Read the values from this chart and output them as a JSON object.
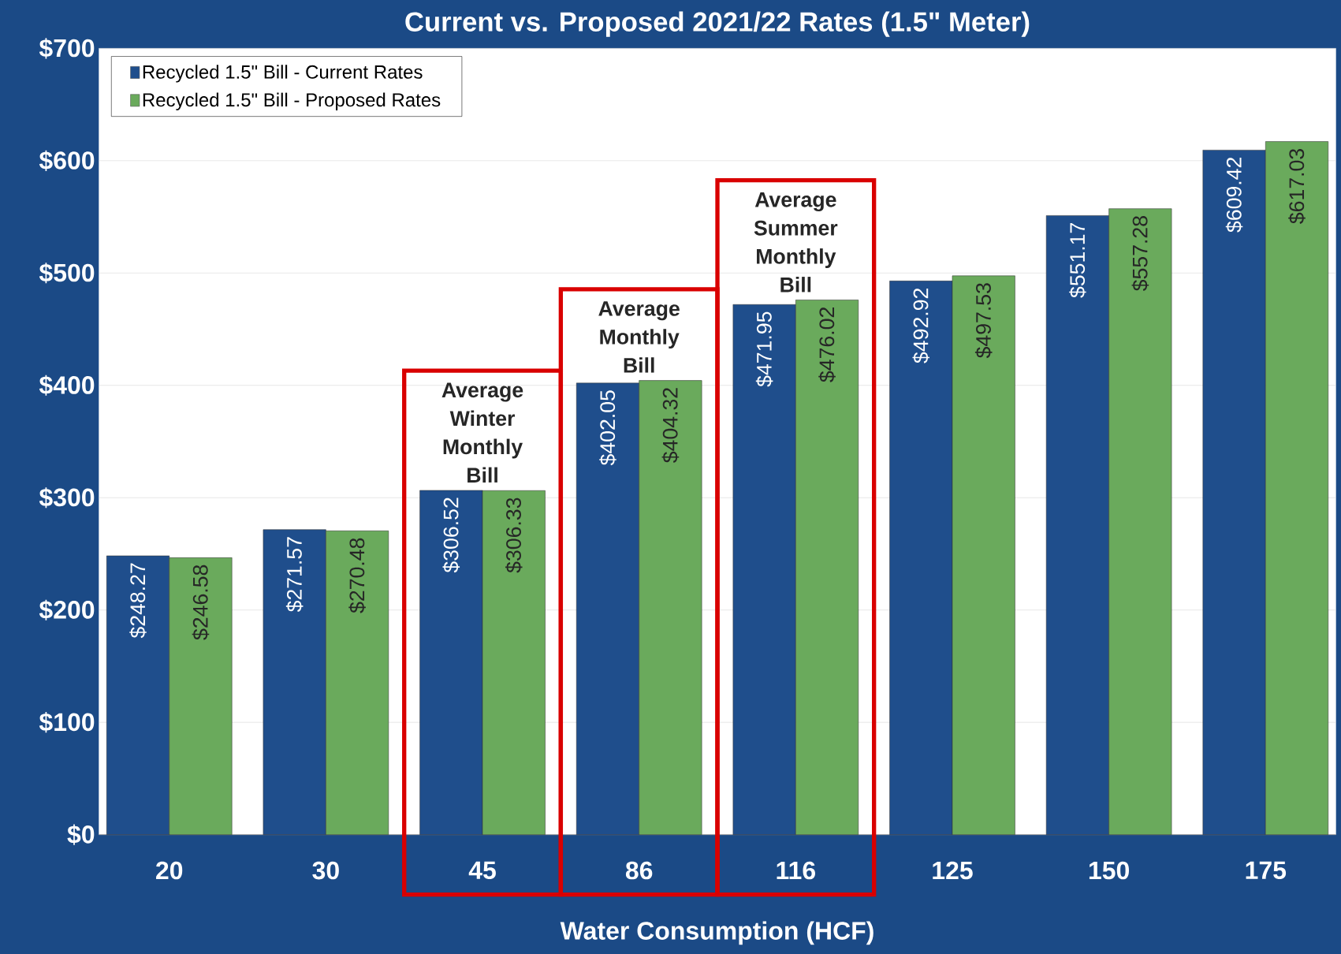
{
  "chart_data": {
    "type": "bar",
    "title": "Current vs. Proposed 2021/22 Rates (1.5\" Meter)",
    "xlabel": "Water Consumption (HCF)",
    "categories": [
      "20",
      "30",
      "45",
      "86",
      "116",
      "125",
      "150",
      "175"
    ],
    "series": [
      {
        "name": "Recycled 1.5\" Bill - Current Rates",
        "color": "#1f4e8c",
        "values": [
          248.27,
          271.57,
          306.52,
          402.05,
          471.95,
          492.92,
          551.17,
          609.42
        ],
        "value_labels": [
          "$248.27",
          "$271.57",
          "$306.52",
          "$402.05",
          "$471.95",
          "$492.92",
          "$551.17",
          "$609.42"
        ]
      },
      {
        "name": "Recycled 1.5\" Bill - Proposed Rates",
        "color": "#6aaa5c",
        "values": [
          246.58,
          270.48,
          306.33,
          404.32,
          476.02,
          497.53,
          557.28,
          617.03
        ],
        "value_labels": [
          "$246.58",
          "$270.48",
          "$306.33",
          "$404.32",
          "$476.02",
          "$497.53",
          "$557.28",
          "$617.03"
        ]
      }
    ],
    "ylim": [
      0,
      700
    ],
    "yticks": [
      {
        "value": 0,
        "label": "$0"
      },
      {
        "value": 100,
        "label": "$100"
      },
      {
        "value": 200,
        "label": "$200"
      },
      {
        "value": 300,
        "label": "$300"
      },
      {
        "value": 400,
        "label": "$400"
      },
      {
        "value": 500,
        "label": "$500"
      },
      {
        "value": 600,
        "label": "$600"
      },
      {
        "value": 700,
        "label": "$700"
      }
    ],
    "grid": "y",
    "legend": "top left",
    "annotations": [
      "Average Winter Monthly Bill",
      "Average Monthly Bill",
      "Average Summer Monthly Bill"
    ]
  }
}
